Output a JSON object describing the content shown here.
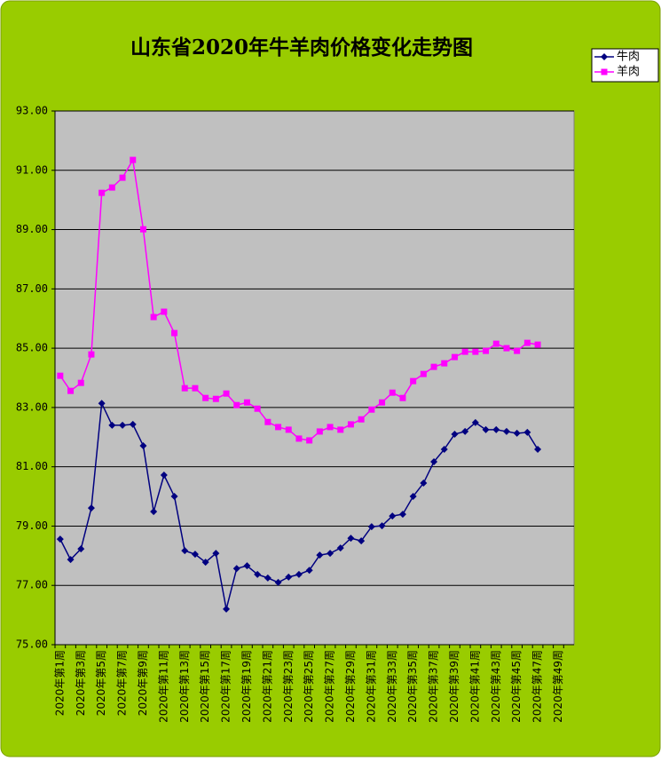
{
  "chart_data": {
    "type": "line",
    "title": "山东省2020年牛羊肉价格变化走势图",
    "categories": [
      "2020年第1周",
      null,
      "2020年第3周",
      null,
      "2020年第5周",
      null,
      "2020年第7周",
      null,
      "2020年第9周",
      null,
      "2020年第11周",
      null,
      "2020年第13周",
      null,
      "2020年第15周",
      null,
      "2020年第17周",
      null,
      "2020年第19周",
      null,
      "2020年第21周",
      null,
      "2020年第23周",
      null,
      "2020年第25周",
      null,
      "2020年第27周",
      null,
      "2020年第29周",
      null,
      "2020年第31周",
      null,
      "2020年第33周",
      null,
      "2020年第35周",
      null,
      "2020年第37周",
      null,
      "2020年第39周",
      null,
      "2020年第41周",
      null,
      "2020年第43周",
      null,
      "2020年第45周",
      null,
      "2020年第47周",
      null,
      "2020年第49周",
      null
    ],
    "series": [
      {
        "name": "牛肉",
        "color": "#000080",
        "marker": "diamond",
        "values": [
          78.56,
          77.87,
          78.23,
          79.61,
          83.14,
          82.4,
          82.4,
          82.43,
          81.71,
          79.49,
          80.72,
          80.0,
          78.17,
          78.05,
          77.78,
          78.08,
          76.2,
          77.57,
          77.66,
          77.37,
          77.25,
          77.1,
          77.28,
          77.37,
          77.51,
          78.02,
          78.08,
          78.26,
          78.59,
          78.5,
          78.98,
          79.01,
          79.34,
          79.4,
          80.0,
          80.45,
          81.17,
          81.59,
          82.1,
          82.19,
          82.49,
          82.25,
          82.25,
          82.19,
          82.13,
          82.16,
          81.59,
          null,
          null,
          null
        ]
      },
      {
        "name": "羊肉",
        "color": "#ff00ff",
        "marker": "square",
        "values": [
          84.07,
          83.56,
          83.83,
          84.79,
          90.24,
          90.42,
          90.75,
          91.35,
          89.01,
          86.05,
          86.23,
          85.51,
          83.65,
          83.65,
          83.32,
          83.29,
          83.47,
          83.08,
          83.17,
          82.96,
          82.51,
          82.34,
          82.25,
          81.95,
          81.89,
          82.19,
          82.34,
          82.25,
          82.43,
          82.6,
          82.93,
          83.17,
          83.5,
          83.32,
          83.89,
          84.13,
          84.37,
          84.49,
          84.7,
          84.88,
          84.88,
          84.91,
          85.15,
          85.0,
          84.91,
          85.18,
          85.12,
          null,
          null,
          null
        ]
      }
    ],
    "ylim": [
      75,
      93
    ],
    "yticks": [
      {
        "value": 75,
        "label": "75.00"
      },
      {
        "value": 77,
        "label": "77.00"
      },
      {
        "value": 79,
        "label": "79.00"
      },
      {
        "value": 81,
        "label": "81.00"
      },
      {
        "value": 83,
        "label": "83.00"
      },
      {
        "value": 85,
        "label": "85.00"
      },
      {
        "value": 87,
        "label": "87.00"
      },
      {
        "value": 89,
        "label": "89.00"
      },
      {
        "value": 91,
        "label": "91.00"
      },
      {
        "value": 93,
        "label": "93.00"
      }
    ],
    "grid": true,
    "legend": "upper right"
  }
}
